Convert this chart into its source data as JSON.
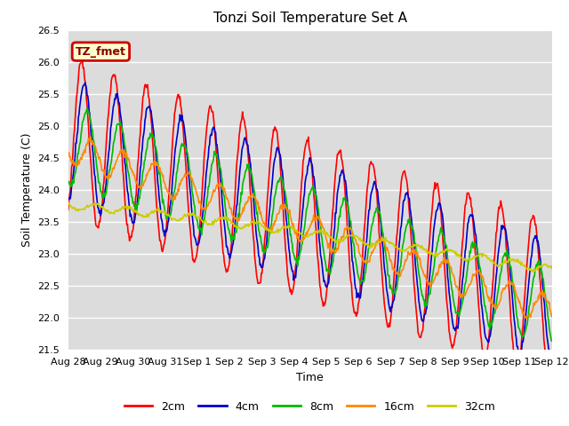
{
  "title": "Tonzi Soil Temperature Set A",
  "ylabel": "Soil Temperature (C)",
  "xlabel": "Time",
  "ylim": [
    21.5,
    26.5
  ],
  "yticks": [
    21.5,
    22.0,
    22.5,
    23.0,
    23.5,
    24.0,
    24.5,
    25.0,
    25.5,
    26.0,
    26.5
  ],
  "xtick_labels": [
    "Aug 28",
    "Aug 29",
    "Aug 30",
    "Aug 31",
    "Sep 1",
    "Sep 2",
    "Sep 3",
    "Sep 4",
    "Sep 5",
    "Sep 6",
    "Sep 7",
    "Sep 8",
    "Sep 9",
    "Sep 10",
    "Sep 11",
    "Sep 12"
  ],
  "annotation_text": "TZ_fmet",
  "annotation_bg": "#ffffcc",
  "annotation_edge": "#cc0000",
  "line_colors": [
    "#ff0000",
    "#0000cc",
    "#00bb00",
    "#ff8800",
    "#cccc00"
  ],
  "line_labels": [
    "2cm",
    "4cm",
    "8cm",
    "16cm",
    "32cm"
  ],
  "line_widths": [
    1.2,
    1.2,
    1.2,
    1.2,
    1.2
  ],
  "plot_bg_color": "#dcdcdc",
  "fig_bg_color": "#ffffff",
  "grid_color": "#ffffff",
  "title_fontsize": 11,
  "label_fontsize": 9,
  "tick_fontsize": 8
}
